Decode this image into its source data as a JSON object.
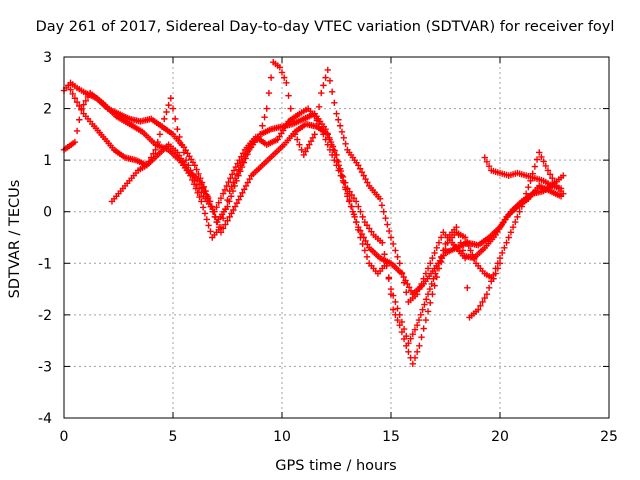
{
  "chart_data": {
    "type": "scatter",
    "title": "Day 261 of 2017, Sidereal Day-to-day VTEC variation (SDTVAR) for receiver foyl",
    "xlabel": "GPS time / hours",
    "ylabel": "SDTVAR / TECUs",
    "xlim": [
      0,
      25
    ],
    "ylim": [
      -4,
      3
    ],
    "x_ticks": [
      "0",
      "5",
      "10",
      "15",
      "20",
      "25"
    ],
    "y_ticks": [
      "-4",
      "-3",
      "-2",
      "-1",
      "0",
      "1",
      "2",
      "3"
    ],
    "grid": true,
    "marker": "plus",
    "color": "#ff0000",
    "series": [
      {
        "points": [
          [
            0,
            2.35
          ],
          [
            0.3,
            2.5
          ],
          [
            0.6,
            2.4
          ],
          [
            1.0,
            2.3
          ],
          [
            1.5,
            2.2
          ],
          [
            2.0,
            2.0
          ],
          [
            2.5,
            1.9
          ],
          [
            3.0,
            1.8
          ],
          [
            3.5,
            1.75
          ],
          [
            4.0,
            1.8
          ],
          [
            4.5,
            1.65
          ],
          [
            5.0,
            1.5
          ],
          [
            5.5,
            1.25
          ],
          [
            6.0,
            0.9
          ],
          [
            6.5,
            0.4
          ],
          [
            7.0,
            -0.2
          ],
          [
            7.5,
            0.1
          ],
          [
            8.0,
            0.7
          ],
          [
            8.5,
            1.2
          ],
          [
            9.0,
            1.5
          ],
          [
            9.5,
            1.6
          ],
          [
            10.0,
            1.65
          ],
          [
            10.5,
            1.7
          ],
          [
            11.0,
            1.8
          ],
          [
            11.5,
            1.9
          ],
          [
            12.0,
            1.6
          ],
          [
            12.5,
            1.1
          ],
          [
            13.0,
            0.3
          ],
          [
            13.5,
            -0.3
          ],
          [
            14.0,
            -0.7
          ],
          [
            14.5,
            -0.9
          ],
          [
            15.0,
            -1.0
          ],
          [
            15.5,
            -1.2
          ],
          [
            16.0,
            -1.6
          ],
          [
            16.5,
            -1.4
          ],
          [
            17.0,
            -1.1
          ],
          [
            17.5,
            -0.8
          ],
          [
            18.0,
            -0.7
          ],
          [
            18.5,
            -0.6
          ],
          [
            19.0,
            -0.65
          ],
          [
            19.5,
            -0.5
          ],
          [
            20.0,
            -0.3
          ],
          [
            20.5,
            0.0
          ],
          [
            21.0,
            0.2
          ],
          [
            21.5,
            0.35
          ],
          [
            22.0,
            0.4
          ],
          [
            22.5,
            0.55
          ],
          [
            22.9,
            0.7
          ]
        ]
      },
      {
        "points": [
          [
            0,
            1.2
          ],
          [
            0.5,
            1.35
          ],
          [
            0.8,
            2.0
          ],
          [
            1.2,
            2.3
          ],
          [
            1.8,
            2.1
          ],
          [
            2.4,
            1.85
          ],
          [
            3.0,
            1.7
          ],
          [
            3.6,
            1.55
          ],
          [
            4.2,
            1.3
          ],
          [
            4.8,
            1.2
          ],
          [
            5.3,
            1.0
          ],
          [
            5.8,
            0.7
          ],
          [
            6.3,
            0.2
          ],
          [
            6.8,
            -0.5
          ],
          [
            7.2,
            -0.3
          ],
          [
            7.6,
            0.4
          ],
          [
            8.1,
            0.9
          ],
          [
            8.6,
            1.3
          ],
          [
            9.0,
            1.5
          ],
          [
            9.3,
            2.0
          ],
          [
            9.6,
            2.9
          ],
          [
            9.9,
            2.8
          ],
          [
            10.2,
            2.5
          ],
          [
            10.6,
            1.5
          ],
          [
            11.0,
            1.1
          ],
          [
            11.5,
            1.5
          ],
          [
            11.8,
            2.3
          ],
          [
            12.1,
            2.75
          ],
          [
            12.5,
            1.9
          ],
          [
            13.0,
            1.2
          ],
          [
            13.5,
            0.9
          ],
          [
            14.0,
            0.5
          ],
          [
            14.5,
            0.25
          ],
          [
            15.0,
            -0.5
          ],
          [
            15.4,
            -1.0
          ],
          [
            15.8,
            -1.75
          ],
          [
            16.2,
            -1.6
          ],
          [
            16.6,
            -1.2
          ],
          [
            17.0,
            -0.8
          ],
          [
            17.4,
            -0.4
          ],
          [
            17.8,
            -0.6
          ],
          [
            18.3,
            -0.85
          ],
          [
            18.8,
            -0.9
          ],
          [
            19.3,
            -0.7
          ],
          [
            19.8,
            -0.45
          ],
          [
            20.3,
            -0.1
          ],
          [
            20.8,
            0.1
          ],
          [
            21.3,
            0.25
          ],
          [
            21.8,
            0.5
          ],
          [
            22.3,
            0.4
          ],
          [
            22.8,
            0.3
          ]
        ]
      },
      {
        "points": [
          [
            2.2,
            0.2
          ],
          [
            2.6,
            0.4
          ],
          [
            3.0,
            0.6
          ],
          [
            3.4,
            0.8
          ],
          [
            3.8,
            0.9
          ],
          [
            4.2,
            1.2
          ],
          [
            4.6,
            1.8
          ],
          [
            4.9,
            2.2
          ],
          [
            5.2,
            1.6
          ],
          [
            5.6,
            1.0
          ],
          [
            6.0,
            0.6
          ],
          [
            6.4,
            0.3
          ],
          [
            6.9,
            0.0
          ],
          [
            7.3,
            0.35
          ],
          [
            7.8,
            0.8
          ],
          [
            8.3,
            1.2
          ],
          [
            8.8,
            1.45
          ],
          [
            9.3,
            1.3
          ],
          [
            9.8,
            1.4
          ],
          [
            10.3,
            1.75
          ],
          [
            10.8,
            1.9
          ],
          [
            11.2,
            2.0
          ],
          [
            11.6,
            1.8
          ],
          [
            12.0,
            1.4
          ],
          [
            12.4,
            1.0
          ],
          [
            12.8,
            0.6
          ],
          [
            13.2,
            0.1
          ],
          [
            13.6,
            -0.5
          ],
          [
            14.0,
            -1.0
          ],
          [
            14.4,
            -1.2
          ],
          [
            14.8,
            -1.0
          ],
          [
            15.1,
            -1.9
          ],
          [
            15.4,
            -2.2
          ],
          [
            15.7,
            -2.6
          ],
          [
            16.0,
            -2.95
          ],
          [
            16.3,
            -2.6
          ],
          [
            16.6,
            -2.1
          ],
          [
            16.9,
            -1.6
          ],
          [
            17.2,
            -1.1
          ],
          [
            17.6,
            -0.6
          ],
          [
            18.0,
            -0.4
          ],
          [
            18.4,
            -0.5
          ],
          [
            18.9,
            -1.0
          ],
          [
            19.3,
            -1.2
          ],
          [
            19.7,
            -1.3
          ],
          [
            20.0,
            -1.0
          ]
        ]
      },
      {
        "points": [
          [
            0.2,
            2.45
          ],
          [
            0.5,
            2.2
          ],
          [
            0.9,
            1.9
          ],
          [
            1.3,
            1.7
          ],
          [
            1.8,
            1.45
          ],
          [
            2.3,
            1.2
          ],
          [
            2.8,
            1.05
          ],
          [
            3.3,
            1.0
          ],
          [
            3.8,
            0.9
          ],
          [
            4.3,
            1.1
          ],
          [
            4.8,
            1.3
          ],
          [
            5.2,
            1.15
          ],
          [
            5.7,
            0.8
          ],
          [
            6.2,
            0.6
          ],
          [
            6.7,
            0.2
          ],
          [
            7.2,
            -0.4
          ],
          [
            7.6,
            -0.1
          ],
          [
            8.1,
            0.3
          ],
          [
            8.6,
            0.7
          ],
          [
            9.1,
            0.9
          ],
          [
            9.6,
            1.1
          ],
          [
            10.1,
            1.3
          ],
          [
            10.6,
            1.55
          ],
          [
            11.1,
            1.7
          ],
          [
            11.6,
            1.65
          ],
          [
            12.1,
            1.5
          ],
          [
            12.6,
            0.9
          ],
          [
            13.0,
            0.45
          ],
          [
            13.4,
            0.2
          ],
          [
            13.8,
            -0.2
          ],
          [
            14.2,
            -0.45
          ],
          [
            14.6,
            -0.6
          ],
          [
            15.0,
            -1.5
          ],
          [
            15.4,
            -2.0
          ],
          [
            15.8,
            -2.55
          ],
          [
            16.2,
            -2.2
          ],
          [
            16.7,
            -1.6
          ],
          [
            17.2,
            -1.0
          ],
          [
            17.6,
            -0.5
          ],
          [
            18.0,
            -0.3
          ],
          [
            18.4,
            -0.9
          ],
          [
            18.6,
            -2.05
          ],
          [
            19.0,
            -1.9
          ],
          [
            19.4,
            -1.6
          ],
          [
            19.8,
            -1.1
          ],
          [
            20.2,
            -0.7
          ],
          [
            20.6,
            -0.3
          ],
          [
            21.0,
            0.1
          ],
          [
            21.4,
            0.6
          ],
          [
            21.8,
            1.15
          ],
          [
            22.2,
            0.8
          ],
          [
            22.6,
            0.5
          ],
          [
            22.9,
            0.35
          ]
        ]
      },
      {
        "points": [
          [
            19.3,
            1.05
          ],
          [
            19.6,
            0.8
          ],
          [
            20.0,
            0.75
          ],
          [
            20.4,
            0.7
          ],
          [
            20.8,
            0.75
          ],
          [
            21.2,
            0.7
          ],
          [
            21.6,
            0.65
          ],
          [
            22.0,
            0.6
          ],
          [
            22.4,
            0.5
          ],
          [
            22.8,
            0.45
          ]
        ]
      }
    ]
  }
}
